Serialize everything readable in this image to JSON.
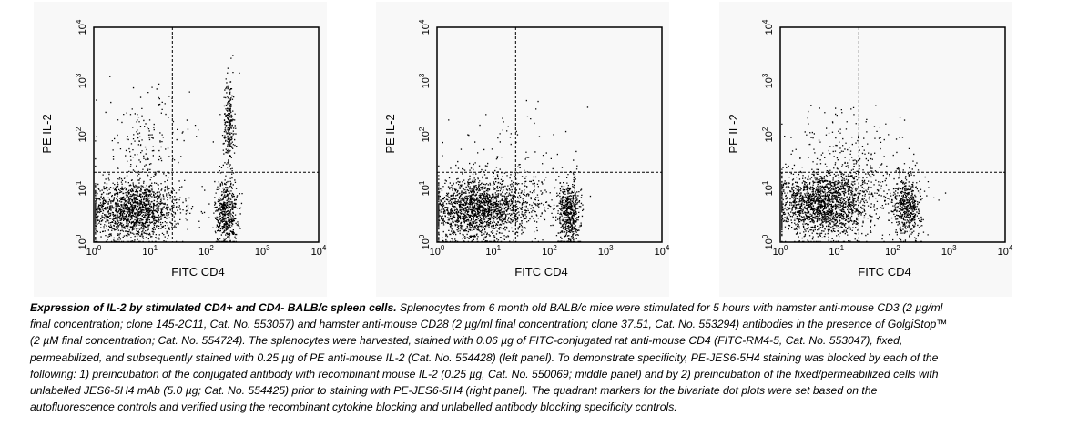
{
  "chart_data": [
    {
      "type": "scatter",
      "xlabel": "FITC CD4",
      "ylabel": "PE IL-2",
      "xscale": "log",
      "yscale": "log",
      "xlim": [
        1,
        10000
      ],
      "ylim": [
        1,
        10000
      ],
      "x_ticks": [
        {
          "b": "10",
          "e": "0"
        },
        {
          "b": "10",
          "e": "1"
        },
        {
          "b": "10",
          "e": "2"
        },
        {
          "b": "10",
          "e": "3"
        },
        {
          "b": "10",
          "e": "4"
        }
      ],
      "y_ticks": [
        {
          "b": "10",
          "e": "0"
        },
        {
          "b": "10",
          "e": "1"
        },
        {
          "b": "10",
          "e": "2"
        },
        {
          "b": "10",
          "e": "3"
        },
        {
          "b": "10",
          "e": "4"
        }
      ],
      "quadrant_markers": {
        "x": 25,
        "y": 20
      },
      "populations": [
        {
          "x_center": 5,
          "y_center": 4,
          "x_spread": 0.42,
          "y_spread": 0.28,
          "count": 1600
        },
        {
          "x_center": 220,
          "y_center": 3.5,
          "x_spread": 0.1,
          "y_spread": 0.32,
          "count": 500
        },
        {
          "x_center": 250,
          "y_center": 150,
          "x_spread": 0.05,
          "y_spread": 0.45,
          "count": 260
        },
        {
          "x_center": 8,
          "y_center": 60,
          "x_spread": 0.4,
          "y_spread": 0.55,
          "count": 200
        }
      ]
    },
    {
      "type": "scatter",
      "xlabel": "FITC CD4",
      "ylabel": "PE IL-2",
      "xscale": "log",
      "yscale": "log",
      "xlim": [
        1,
        10000
      ],
      "ylim": [
        1,
        10000
      ],
      "x_ticks": [
        {
          "b": "10",
          "e": "0"
        },
        {
          "b": "10",
          "e": "1"
        },
        {
          "b": "10",
          "e": "2"
        },
        {
          "b": "10",
          "e": "3"
        },
        {
          "b": "10",
          "e": "4"
        }
      ],
      "y_ticks": [
        {
          "b": "10",
          "e": "0"
        },
        {
          "b": "10",
          "e": "1"
        },
        {
          "b": "10",
          "e": "2"
        },
        {
          "b": "10",
          "e": "3"
        },
        {
          "b": "10",
          "e": "4"
        }
      ],
      "quadrant_markers": {
        "x": 25,
        "y": 20
      },
      "populations": [
        {
          "x_center": 5,
          "y_center": 4,
          "x_spread": 0.42,
          "y_spread": 0.28,
          "count": 1700
        },
        {
          "x_center": 220,
          "y_center": 3.5,
          "x_spread": 0.1,
          "y_spread": 0.3,
          "count": 520
        },
        {
          "x_center": 30,
          "y_center": 6,
          "x_spread": 0.5,
          "y_spread": 0.3,
          "count": 300
        },
        {
          "x_center": 20,
          "y_center": 40,
          "x_spread": 0.5,
          "y_spread": 0.5,
          "count": 90
        }
      ]
    },
    {
      "type": "scatter",
      "xlabel": "FITC CD4",
      "ylabel": "PE IL-2",
      "xscale": "log",
      "yscale": "log",
      "xlim": [
        1,
        10000
      ],
      "ylim": [
        1,
        10000
      ],
      "x_ticks": [
        {
          "b": "10",
          "e": "0"
        },
        {
          "b": "10",
          "e": "1"
        },
        {
          "b": "10",
          "e": "2"
        },
        {
          "b": "10",
          "e": "3"
        },
        {
          "b": "10",
          "e": "4"
        }
      ],
      "y_ticks": [
        {
          "b": "10",
          "e": "0"
        },
        {
          "b": "10",
          "e": "1"
        },
        {
          "b": "10",
          "e": "2"
        },
        {
          "b": "10",
          "e": "3"
        },
        {
          "b": "10",
          "e": "4"
        }
      ],
      "quadrant_markers": {
        "x": 25,
        "y": 20
      },
      "populations": [
        {
          "x_center": 5,
          "y_center": 5,
          "x_spread": 0.42,
          "y_spread": 0.3,
          "count": 1700
        },
        {
          "x_center": 180,
          "y_center": 5,
          "x_spread": 0.12,
          "y_spread": 0.3,
          "count": 520
        },
        {
          "x_center": 25,
          "y_center": 8,
          "x_spread": 0.5,
          "y_spread": 0.3,
          "count": 300
        },
        {
          "x_center": 15,
          "y_center": 50,
          "x_spread": 0.5,
          "y_spread": 0.45,
          "count": 180
        }
      ]
    }
  ],
  "caption": {
    "title": "Expression of IL-2 by stimulated CD4+ and CD4- BALB/c spleen cells.",
    "body": " Splenocytes from 6 month old BALB/c mice were stimulated for 5 hours with hamster anti-mouse CD3 (2 µg/ml final concentration; clone 145-2C11, Cat. No. 553057) and hamster anti-mouse CD28 (2 µg/ml final concentration; clone 37.51, Cat. No. 553294) antibodies in the presence of GolgiStop™ (2 µM final concentration; Cat. No. 554724). The splenocytes were harvested, stained with 0.06 µg of FITC-conjugated rat anti-mouse CD4 (FITC-RM4-5, Cat. No. 553047), fixed, permeabilized, and subsequently stained with 0.25 µg of PE anti-mouse IL-2 (Cat. No. 554428) (left panel). To demonstrate specificity, PE-JES6-5H4 staining was blocked by each of the following: 1) preincubation of the conjugated antibody with recombinant mouse IL-2 (0.25 µg, Cat. No. 550069; middle panel) and by 2) preincubation of the fixed/permeabilized cells with unlabelled JES6-5H4 mAb (5.0 µg; Cat. No. 554425) prior to staining with PE-JES6-5H4 (right panel). The quadrant markers for the bivariate dot plots were set based on the autofluorescence controls and verified using the recombinant cytokine blocking and unlabelled antibody blocking specificity controls."
  }
}
